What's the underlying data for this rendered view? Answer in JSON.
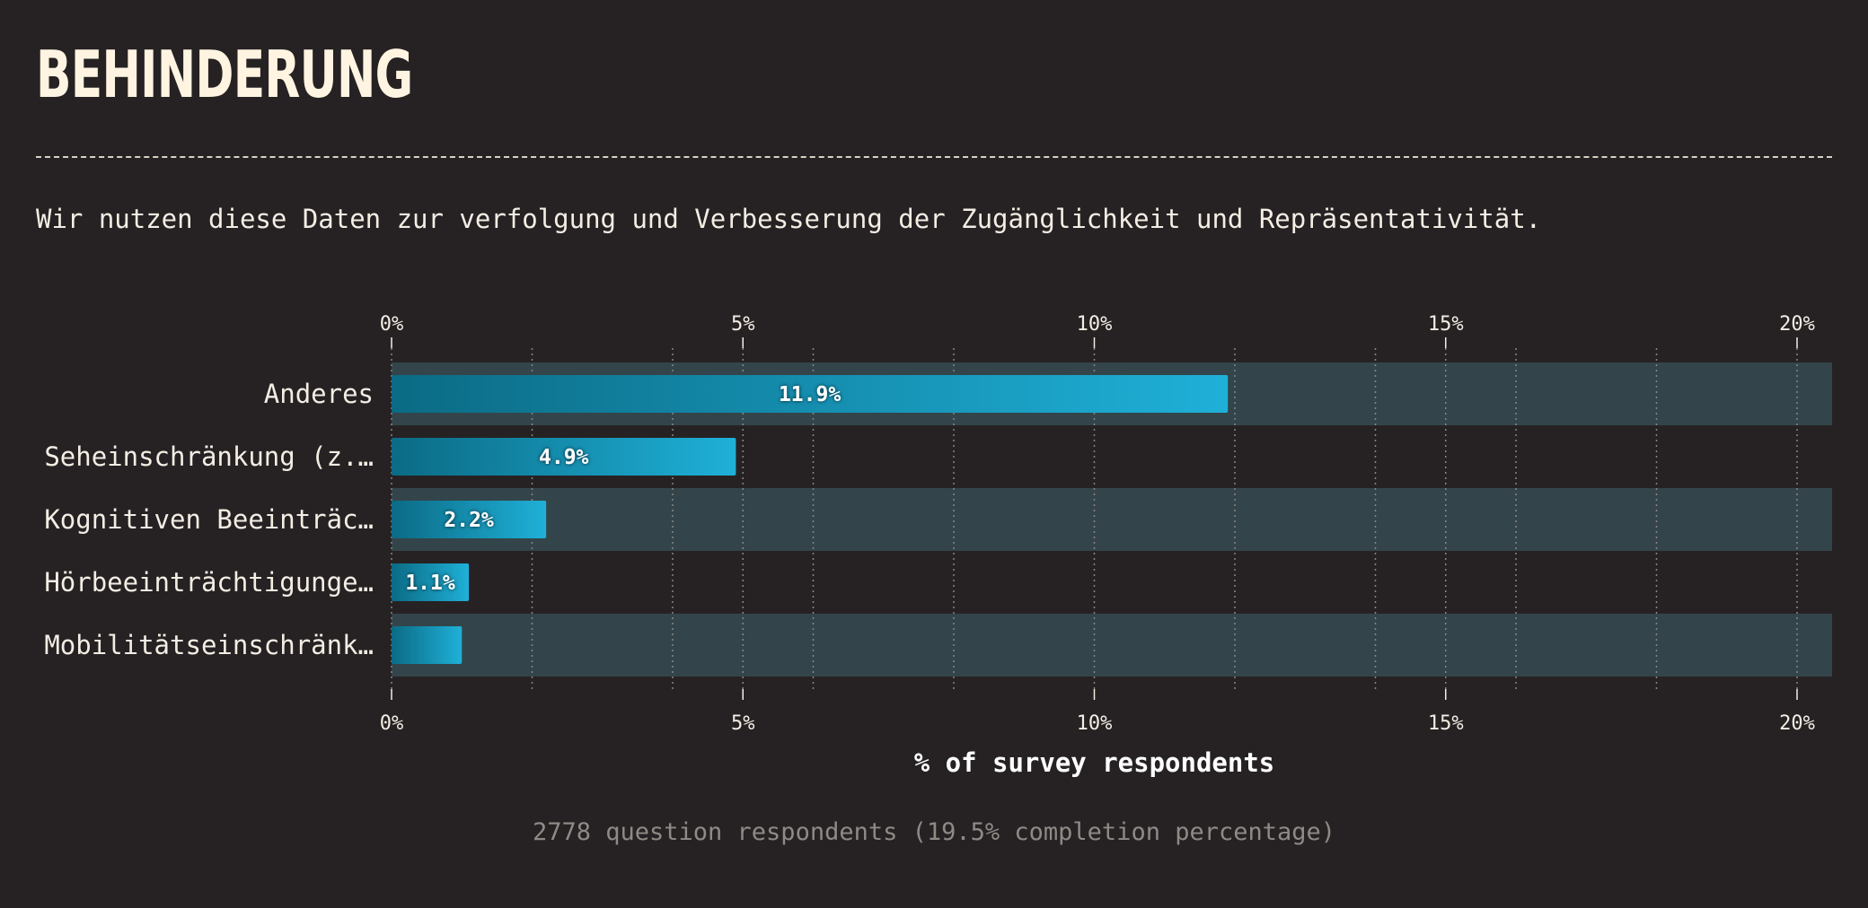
{
  "header": {
    "title": "BEHINDERUNG",
    "subtitle": "Wir nutzen diese Daten zur verfolgung und Verbesserung der Zugänglichkeit und Repräsentativität."
  },
  "footer": {
    "note": "2778 question respondents (19.5% completion percentage)"
  },
  "colors": {
    "background": "#262223",
    "row_band": "#33454a",
    "bar_start": "#0b6b85",
    "bar_end": "#1fb0d8",
    "grid": "#8a8582",
    "text": "#f3ede4"
  },
  "chart_data": {
    "type": "bar",
    "orientation": "horizontal",
    "categories": [
      "Anderes",
      "Seheinschränkung (z.…",
      "Kognitiven Beeinträc…",
      "Hörbeeinträchtigunge…",
      "Mobilitätseinschränk…"
    ],
    "values": [
      11.9,
      4.9,
      2.2,
      1.1,
      1.0
    ],
    "value_labels": [
      "11.9%",
      "4.9%",
      "2.2%",
      "1.1%",
      ""
    ],
    "xlabel": "% of survey respondents",
    "ylabel": "",
    "xlim": [
      0,
      20.5
    ],
    "ticks": [
      0,
      5,
      10,
      15,
      20
    ],
    "tick_labels": [
      "0%",
      "5%",
      "10%",
      "15%",
      "20%"
    ],
    "minor_gridlines_every": 2,
    "grid": true,
    "axis_labels_top_and_bottom": true,
    "alternating_row_bands": true
  }
}
